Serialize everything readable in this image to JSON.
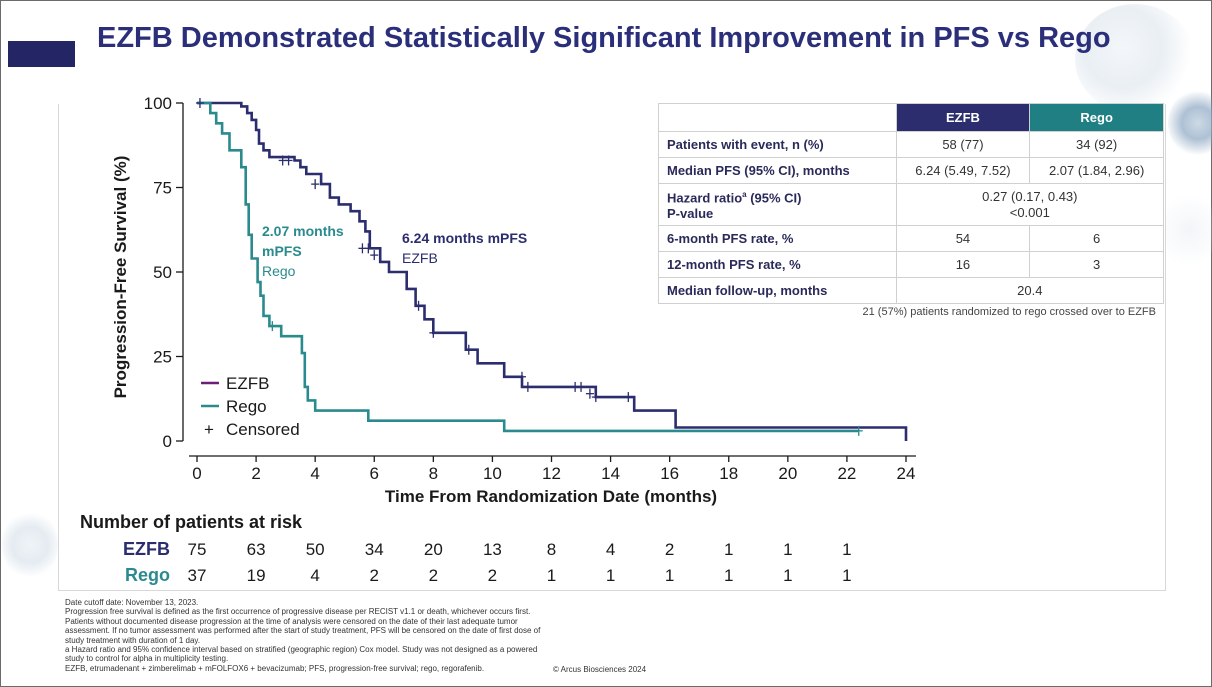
{
  "slide": {
    "title": "EZFB Demonstrated Statistically Significant Improvement in PFS vs Rego",
    "copyright": "© Arcus Biosciences 2024"
  },
  "colors": {
    "ezfb": "#2b2d6e",
    "rego": "#2a8a8e",
    "title": "#2b2f7a",
    "legend_ezfb_line": "#6b1f7a"
  },
  "annotations": {
    "ezfb_median": "6.24 months mPFS",
    "ezfb_name": "EZFB",
    "rego_median_line1": "2.07 months",
    "rego_median_line2": "mPFS",
    "rego_name": "Rego"
  },
  "legend": {
    "ezfb": "EZFB",
    "rego": "Rego",
    "censored": "Censored",
    "censored_symbol": "+"
  },
  "chart_data": {
    "type": "line",
    "xlabel": "Time From Randomization Date (months)",
    "ylabel": "Progression-Free Survival (%)",
    "xlim": [
      0,
      24
    ],
    "ylim": [
      0,
      100
    ],
    "xticks": [
      0,
      2,
      4,
      6,
      8,
      10,
      12,
      14,
      16,
      18,
      20,
      22,
      24
    ],
    "yticks": [
      0,
      25,
      50,
      75,
      100
    ],
    "step": true,
    "series": [
      {
        "name": "EZFB",
        "color": "#2b2d6e",
        "points": [
          [
            0,
            100
          ],
          [
            1.5,
            100
          ],
          [
            1.5,
            99
          ],
          [
            1.7,
            99
          ],
          [
            1.7,
            97
          ],
          [
            1.85,
            97
          ],
          [
            1.85,
            95
          ],
          [
            2.0,
            95
          ],
          [
            2.0,
            92
          ],
          [
            2.1,
            92
          ],
          [
            2.1,
            88
          ],
          [
            2.25,
            88
          ],
          [
            2.25,
            86
          ],
          [
            2.45,
            86
          ],
          [
            2.45,
            84
          ],
          [
            3.3,
            84
          ],
          [
            3.3,
            83
          ],
          [
            3.5,
            83
          ],
          [
            3.5,
            81
          ],
          [
            3.7,
            81
          ],
          [
            3.7,
            79
          ],
          [
            4.2,
            79
          ],
          [
            4.2,
            76
          ],
          [
            4.5,
            76
          ],
          [
            4.5,
            72
          ],
          [
            4.8,
            72
          ],
          [
            4.8,
            70
          ],
          [
            5.2,
            70
          ],
          [
            5.2,
            68
          ],
          [
            5.5,
            68
          ],
          [
            5.5,
            65
          ],
          [
            5.7,
            65
          ],
          [
            5.7,
            62
          ],
          [
            5.85,
            62
          ],
          [
            5.85,
            57
          ],
          [
            6.2,
            57
          ],
          [
            6.2,
            53
          ],
          [
            6.5,
            53
          ],
          [
            6.5,
            50
          ],
          [
            7.1,
            50
          ],
          [
            7.1,
            45
          ],
          [
            7.4,
            45
          ],
          [
            7.4,
            40
          ],
          [
            7.7,
            40
          ],
          [
            7.7,
            36
          ],
          [
            8.0,
            36
          ],
          [
            8.0,
            32
          ],
          [
            9.1,
            32
          ],
          [
            9.1,
            27
          ],
          [
            9.5,
            27
          ],
          [
            9.5,
            23
          ],
          [
            10.4,
            23
          ],
          [
            10.4,
            19
          ],
          [
            11.0,
            19
          ],
          [
            11.0,
            16
          ],
          [
            13.5,
            16
          ],
          [
            13.5,
            13
          ],
          [
            14.8,
            13
          ],
          [
            14.8,
            9
          ],
          [
            16.2,
            9
          ],
          [
            16.2,
            4
          ],
          [
            24,
            4
          ],
          [
            24,
            0
          ]
        ],
        "censored": [
          [
            0.1,
            100
          ],
          [
            2.9,
            83
          ],
          [
            3.1,
            83
          ],
          [
            4.0,
            76
          ],
          [
            5.6,
            57
          ],
          [
            5.8,
            57
          ],
          [
            6.0,
            55
          ],
          [
            7.5,
            40
          ],
          [
            8.0,
            32
          ],
          [
            9.2,
            27
          ],
          [
            11.0,
            19
          ],
          [
            11.2,
            16
          ],
          [
            12.8,
            16
          ],
          [
            13.0,
            16
          ],
          [
            13.3,
            14
          ],
          [
            13.5,
            13
          ],
          [
            14.6,
            13
          ]
        ]
      },
      {
        "name": "Rego",
        "color": "#2a8a8e",
        "points": [
          [
            0,
            100
          ],
          [
            0.45,
            100
          ],
          [
            0.45,
            97
          ],
          [
            0.65,
            97
          ],
          [
            0.65,
            94
          ],
          [
            0.85,
            94
          ],
          [
            0.85,
            91
          ],
          [
            1.1,
            91
          ],
          [
            1.1,
            86
          ],
          [
            1.5,
            86
          ],
          [
            1.5,
            81
          ],
          [
            1.65,
            81
          ],
          [
            1.65,
            70
          ],
          [
            1.75,
            70
          ],
          [
            1.75,
            61
          ],
          [
            1.85,
            61
          ],
          [
            1.85,
            54
          ],
          [
            2.05,
            54
          ],
          [
            2.05,
            47
          ],
          [
            2.15,
            47
          ],
          [
            2.15,
            43
          ],
          [
            2.25,
            43
          ],
          [
            2.25,
            37
          ],
          [
            2.45,
            37
          ],
          [
            2.45,
            34
          ],
          [
            2.85,
            34
          ],
          [
            2.85,
            31
          ],
          [
            3.55,
            31
          ],
          [
            3.55,
            26
          ],
          [
            3.65,
            26
          ],
          [
            3.65,
            16
          ],
          [
            3.75,
            16
          ],
          [
            3.75,
            12
          ],
          [
            4.0,
            12
          ],
          [
            4.0,
            9
          ],
          [
            5.8,
            9
          ],
          [
            5.8,
            6
          ],
          [
            10.4,
            6
          ],
          [
            10.4,
            3
          ],
          [
            22.4,
            3
          ]
        ],
        "censored": [
          [
            2.55,
            34
          ],
          [
            22.4,
            3
          ]
        ]
      }
    ],
    "at_risk_times": [
      0,
      2,
      4,
      6,
      8,
      10,
      12,
      14,
      16,
      18,
      20,
      22
    ]
  },
  "at_risk": {
    "title": "Number of patients at risk",
    "rows": [
      {
        "label": "EZFB",
        "values": [
          "75",
          "63",
          "50",
          "34",
          "20",
          "13",
          "8",
          "4",
          "2",
          "1",
          "1",
          "1"
        ]
      },
      {
        "label": "Rego",
        "values": [
          "37",
          "19",
          "4",
          "2",
          "2",
          "2",
          "1",
          "1",
          "1",
          "1",
          "1",
          "1"
        ]
      }
    ]
  },
  "stats_table": {
    "header_ezfb": "EZFB",
    "header_rego": "Rego",
    "rows": {
      "events": {
        "label": "Patients with event, n (%)",
        "ezfb": "58 (77)",
        "rego": "34 (92)"
      },
      "median": {
        "label": "Median PFS (95% CI), months",
        "ezfb": "6.24 (5.49, 7.52)",
        "rego": "2.07 (1.84, 2.96)"
      },
      "hr": {
        "label_main": "Hazard ratio",
        "label_sup": "a",
        "label_tail": " (95% CI)",
        "label2": "P-value",
        "value1": "0.27 (0.17, 0.43)",
        "value2": "<0.001"
      },
      "m6": {
        "label": "6-month PFS rate, %",
        "ezfb": "54",
        "rego": "6"
      },
      "m12": {
        "label": "12-month PFS rate, %",
        "ezfb": "16",
        "rego": "3"
      },
      "followup": {
        "label": "Median follow-up, months",
        "value": "20.4"
      }
    },
    "footnote": "21 (57%) patients randomized to rego crossed over to EZFB"
  },
  "footnotes": [
    "Date cutoff date: November 13, 2023.",
    "Progression free survival is defined as the first occurrence of progressive disease per RECIST v1.1 or death, whichever occurs first. Patients without documented disease progression at the time of analysis were censored on the date of their last adequate tumor assessment. If no tumor assessment was performed after the start of study treatment, PFS will be censored on the date of first dose of study treatment with duration of 1 day.",
    "a Hazard ratio and 95% confidence interval based on stratified (geographic region) Cox model. Study was not designed as a powered study to control for alpha in multiplicity testing.",
    "EZFB, etrumadenant + zimberelimab + mFOLFOX6 + bevacizumab; PFS, progression-free survival; rego, regorafenib."
  ]
}
